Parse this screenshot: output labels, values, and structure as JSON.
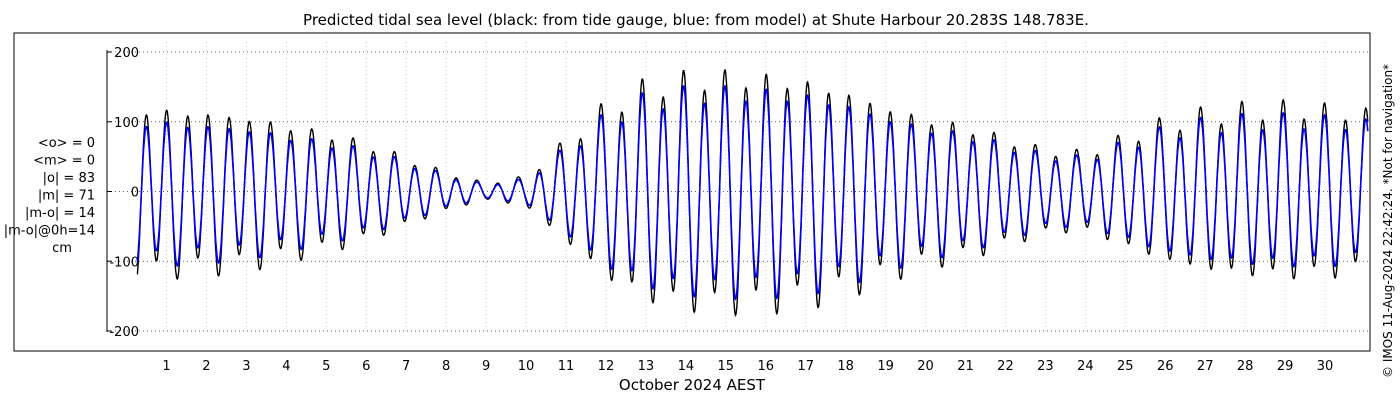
{
  "chart_data": {
    "type": "line",
    "title": "Predicted tidal sea level (black: from tide gauge, blue: from model) at Shute Harbour 20.283S 148.783E.",
    "xlabel": "October 2024 AEST",
    "ylabel": "",
    "x_range_days": [
      0,
      31.3
    ],
    "ylim": [
      -215,
      215
    ],
    "y_ticks": [
      200,
      100,
      0,
      -100,
      -200
    ],
    "x_ticks": [
      "1",
      "2",
      "3",
      "4",
      "5",
      "6",
      "7",
      "8",
      "9",
      "10",
      "11",
      "12",
      "13",
      "14",
      "15",
      "16",
      "17",
      "18",
      "19",
      "20",
      "21",
      "22",
      "23",
      "24",
      "25",
      "26",
      "27",
      "28",
      "29",
      "30"
    ],
    "grid": true,
    "series": [
      {
        "color": "#000000",
        "envelope_days": [
          0,
          1,
          2,
          3,
          4,
          5,
          6,
          7,
          8,
          9,
          10,
          11,
          12,
          13,
          14,
          15,
          16,
          17,
          18,
          19,
          20,
          21,
          22,
          23,
          24,
          25,
          26,
          27,
          28,
          29,
          30,
          31
        ],
        "envelope_amplitude_cm": [
          128,
          122,
          118,
          112,
          100,
          88,
          72,
          50,
          28,
          12,
          22,
          75,
          128,
          160,
          172,
          175,
          172,
          165,
          150,
          128,
          110,
          98,
          80,
          62,
          58,
          82,
          105,
          118,
          125,
          128,
          125,
          120
        ]
      },
      {
        "color": "#0000ff",
        "envelope_days": [
          0,
          1,
          2,
          3,
          4,
          5,
          6,
          7,
          8,
          9,
          10,
          11,
          12,
          13,
          14,
          15,
          16,
          17,
          18,
          19,
          20,
          21,
          22,
          23,
          24,
          25,
          26,
          27,
          28,
          29,
          30,
          31
        ],
        "envelope_amplitude_cm": [
          108,
          104,
          100,
          95,
          84,
          74,
          62,
          44,
          24,
          10,
          18,
          64,
          112,
          140,
          150,
          152,
          150,
          145,
          132,
          112,
          96,
          86,
          70,
          54,
          50,
          72,
          92,
          103,
          108,
          110,
          108,
          104
        ]
      }
    ],
    "stats": [
      "<o> = 0",
      "<m> = 0",
      "|o| = 83",
      "|m| = 71",
      "|m-o| = 14",
      "|m-o|@0h=14",
      "cm"
    ],
    "sidebar_text": "© IMOS 11-Aug-2024 22:42:24. *Not for navigation*"
  }
}
